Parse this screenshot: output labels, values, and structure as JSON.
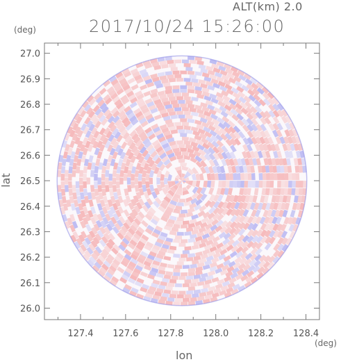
{
  "header": {
    "altitude_label": "ALT(km) 2.0",
    "datetime": "2017/10/24 15:26:00"
  },
  "axes": {
    "y_unit": "(deg)",
    "x_unit": "(deg)",
    "xlabel": "lon",
    "ylabel": "lat"
  },
  "chart_data": {
    "type": "heatmap",
    "title": "2017/10/24 15:26:00",
    "subtitle": "ALT(km) 2.0",
    "xlabel": "lon",
    "ylabel": "lat",
    "x_unit": "(deg)",
    "y_unit": "(deg)",
    "xlim": [
      127.24,
      128.46
    ],
    "ylim": [
      25.955,
      27.04
    ],
    "x_ticks": [
      "127.4",
      "127.6",
      "127.8",
      "128.0",
      "128.2",
      "128.4"
    ],
    "y_ticks": [
      "26.0",
      "26.1",
      "26.2",
      "26.3",
      "26.4",
      "26.5",
      "26.6",
      "26.7",
      "26.8",
      "26.9",
      "27.0"
    ],
    "center": {
      "lon": 127.85,
      "lat": 26.5
    },
    "radius_lat_deg": 0.49,
    "colormap": {
      "negative": "#8c8cf0",
      "zero": "#ffffff",
      "positive": "#f08c8c"
    },
    "grid": false,
    "legend": "none"
  }
}
